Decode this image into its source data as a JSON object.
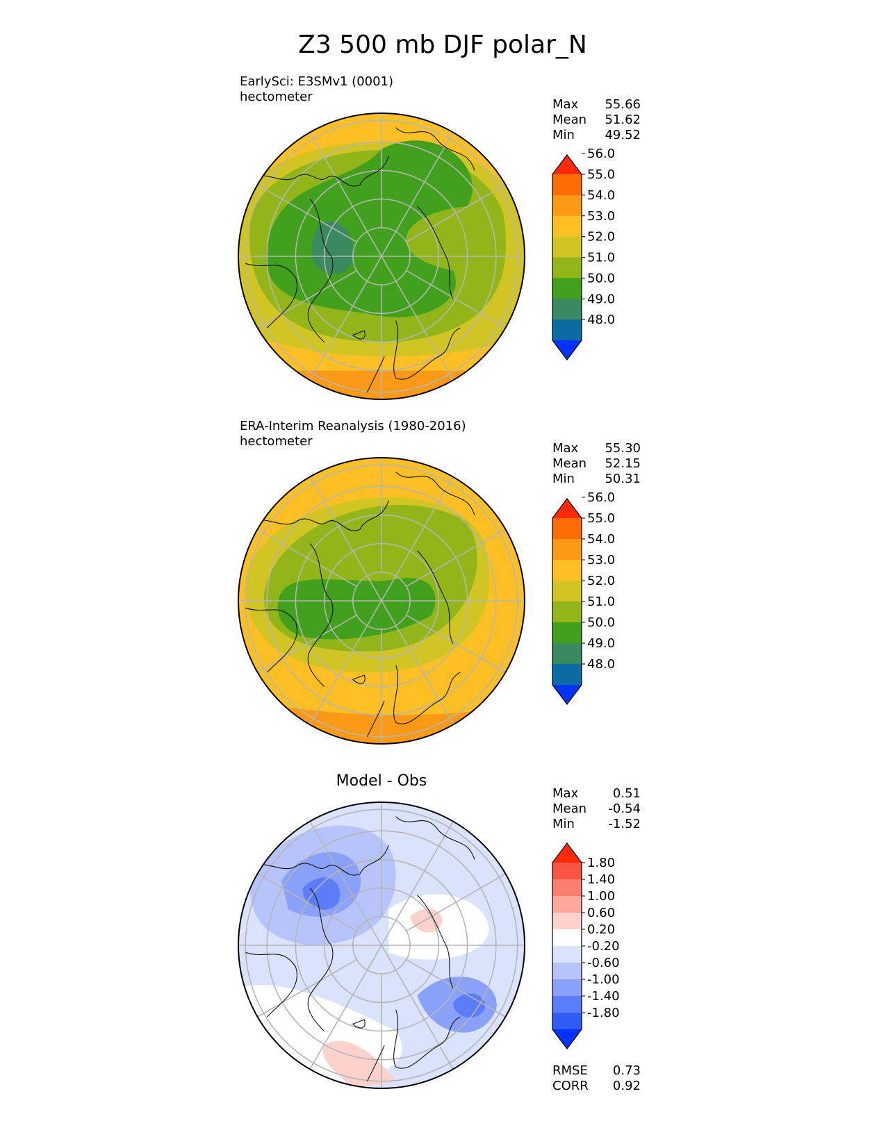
{
  "figure": {
    "title": "Z3 500 mb DJF polar_N"
  },
  "chart_data": [
    {
      "type": "heatmap",
      "projection": "north-polar-stereographic",
      "title": "",
      "subtitle_lines": [
        "EarlySci: E3SMv1 (0001)",
        "hectometer"
      ],
      "stats": {
        "labels": [
          "Max",
          "Mean",
          "Min"
        ],
        "values": [
          "55.66",
          "51.62",
          "49.52"
        ]
      },
      "colorbar": {
        "levels": [
          "48.0",
          "49.0",
          "50.0",
          "51.0",
          "52.0",
          "53.0",
          "54.0",
          "55.0",
          "56.0"
        ],
        "colors": [
          "#0433ff",
          "#0b6da2",
          "#3a8a5f",
          "#41a01c",
          "#92b61a",
          "#d1c523",
          "#fcc025",
          "#fd9a15",
          "#fd6b05",
          "#ff2a08"
        ],
        "extend": "both"
      },
      "field_regions": [
        {
          "name": "field-band-55",
          "value": 55.0
        },
        {
          "name": "field-band-54",
          "value": 54.0
        },
        {
          "name": "field-band-53",
          "value": 53.0
        },
        {
          "name": "field-band-52",
          "value": 52.0
        },
        {
          "name": "field-band-51",
          "value": 51.0
        },
        {
          "name": "field-band-50",
          "value": 50.0
        },
        {
          "name": "field-band-49",
          "value": 49.52
        }
      ]
    },
    {
      "type": "heatmap",
      "projection": "north-polar-stereographic",
      "title": "",
      "subtitle_lines": [
        "ERA-Interim Reanalysis (1980-2016)",
        "hectometer"
      ],
      "stats": {
        "labels": [
          "Max",
          "Mean",
          "Min"
        ],
        "values": [
          "55.30",
          "52.15",
          "50.31"
        ]
      },
      "colorbar": {
        "levels": [
          "48.0",
          "49.0",
          "50.0",
          "51.0",
          "52.0",
          "53.0",
          "54.0",
          "55.0",
          "56.0"
        ],
        "colors": [
          "#0433ff",
          "#0b6da2",
          "#3a8a5f",
          "#41a01c",
          "#92b61a",
          "#d1c523",
          "#fcc025",
          "#fd9a15",
          "#fd6b05",
          "#ff2a08"
        ],
        "extend": "both"
      },
      "field_regions": [
        {
          "name": "field-band-55",
          "value": 55.0
        },
        {
          "name": "field-band-54",
          "value": 54.0
        },
        {
          "name": "field-band-53",
          "value": 53.0
        },
        {
          "name": "field-band-52",
          "value": 52.0
        },
        {
          "name": "field-band-51",
          "value": 51.0
        },
        {
          "name": "field-band-50",
          "value": 50.31
        }
      ]
    },
    {
      "type": "heatmap",
      "projection": "north-polar-stereographic",
      "title": "Model - Obs",
      "subtitle_lines": [],
      "stats": {
        "labels": [
          "Max",
          "Mean",
          "Min"
        ],
        "values": [
          "0.51",
          "-0.54",
          "-1.52"
        ]
      },
      "colorbar": {
        "levels": [
          "-1.80",
          "-1.40",
          "-1.00",
          "-0.60",
          "-0.20",
          "0.20",
          "0.60",
          "1.00",
          "1.40",
          "1.80"
        ],
        "colors": [
          "#0433ff",
          "#2f5df5",
          "#5b7ef8",
          "#8aa1f9",
          "#b6c4fb",
          "#dae2fc",
          "#ffffff",
          "#fdd2cc",
          "#fca89d",
          "#fb7f70",
          "#fa5444",
          "#ff2a08"
        ],
        "extend": "both"
      },
      "field_regions": [
        {
          "name": "diff-region-white",
          "value": 0.0
        },
        {
          "name": "diff-region-pale-blue",
          "value": -0.4
        },
        {
          "name": "diff-region-light-blue",
          "value": -0.8
        },
        {
          "name": "diff-region-mid-blue",
          "value": -1.2
        },
        {
          "name": "diff-region-deep-blue",
          "value": -1.52
        },
        {
          "name": "diff-region-pink",
          "value": 0.4
        }
      ],
      "footer": {
        "labels": [
          "RMSE",
          "CORR"
        ],
        "values": [
          "0.73",
          "0.92"
        ]
      }
    }
  ]
}
